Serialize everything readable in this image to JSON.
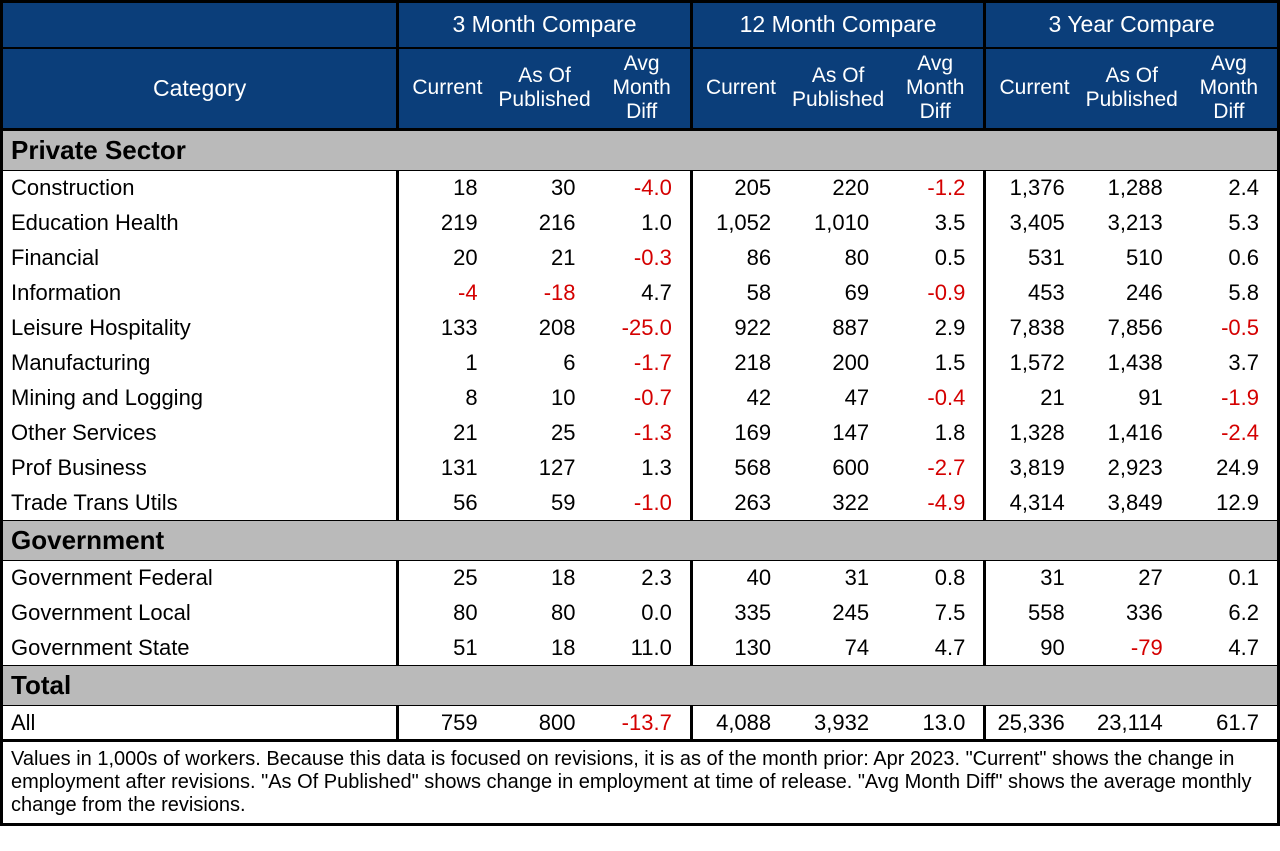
{
  "header": {
    "category": "Category",
    "groups": [
      "3 Month Compare",
      "12 Month Compare",
      "3 Year Compare"
    ],
    "sub": {
      "current": "Current",
      "asof": "As Of\nPublished",
      "avg": "Avg\nMonth\nDiff"
    }
  },
  "colors": {
    "header_bg": "#0b3e7a",
    "header_fg": "#ffffff",
    "section_bg": "#bababa",
    "negative": "#d40000",
    "border": "#000000",
    "bg": "#ffffff"
  },
  "sections": [
    {
      "title": "Private Sector",
      "rows": [
        {
          "label": "Construction",
          "g3": {
            "current": "18",
            "asof": "30",
            "avg": "-4.0"
          },
          "g12": {
            "current": "205",
            "asof": "220",
            "avg": "-1.2"
          },
          "g3y": {
            "current": "1,376",
            "asof": "1,288",
            "avg": "2.4"
          }
        },
        {
          "label": "Education Health",
          "g3": {
            "current": "219",
            "asof": "216",
            "avg": "1.0"
          },
          "g12": {
            "current": "1,052",
            "asof": "1,010",
            "avg": "3.5"
          },
          "g3y": {
            "current": "3,405",
            "asof": "3,213",
            "avg": "5.3"
          }
        },
        {
          "label": "Financial",
          "g3": {
            "current": "20",
            "asof": "21",
            "avg": "-0.3"
          },
          "g12": {
            "current": "86",
            "asof": "80",
            "avg": "0.5"
          },
          "g3y": {
            "current": "531",
            "asof": "510",
            "avg": "0.6"
          }
        },
        {
          "label": "Information",
          "g3": {
            "current": "-4",
            "asof": "-18",
            "avg": "4.7"
          },
          "g12": {
            "current": "58",
            "asof": "69",
            "avg": "-0.9"
          },
          "g3y": {
            "current": "453",
            "asof": "246",
            "avg": "5.8"
          }
        },
        {
          "label": "Leisure Hospitality",
          "g3": {
            "current": "133",
            "asof": "208",
            "avg": "-25.0"
          },
          "g12": {
            "current": "922",
            "asof": "887",
            "avg": "2.9"
          },
          "g3y": {
            "current": "7,838",
            "asof": "7,856",
            "avg": "-0.5"
          }
        },
        {
          "label": "Manufacturing",
          "g3": {
            "current": "1",
            "asof": "6",
            "avg": "-1.7"
          },
          "g12": {
            "current": "218",
            "asof": "200",
            "avg": "1.5"
          },
          "g3y": {
            "current": "1,572",
            "asof": "1,438",
            "avg": "3.7"
          }
        },
        {
          "label": "Mining and Logging",
          "g3": {
            "current": "8",
            "asof": "10",
            "avg": "-0.7"
          },
          "g12": {
            "current": "42",
            "asof": "47",
            "avg": "-0.4"
          },
          "g3y": {
            "current": "21",
            "asof": "91",
            "avg": "-1.9"
          }
        },
        {
          "label": "Other Services",
          "g3": {
            "current": "21",
            "asof": "25",
            "avg": "-1.3"
          },
          "g12": {
            "current": "169",
            "asof": "147",
            "avg": "1.8"
          },
          "g3y": {
            "current": "1,328",
            "asof": "1,416",
            "avg": "-2.4"
          }
        },
        {
          "label": "Prof Business",
          "g3": {
            "current": "131",
            "asof": "127",
            "avg": "1.3"
          },
          "g12": {
            "current": "568",
            "asof": "600",
            "avg": "-2.7"
          },
          "g3y": {
            "current": "3,819",
            "asof": "2,923",
            "avg": "24.9"
          }
        },
        {
          "label": "Trade Trans Utils",
          "g3": {
            "current": "56",
            "asof": "59",
            "avg": "-1.0"
          },
          "g12": {
            "current": "263",
            "asof": "322",
            "avg": "-4.9"
          },
          "g3y": {
            "current": "4,314",
            "asof": "3,849",
            "avg": "12.9"
          }
        }
      ]
    },
    {
      "title": "Government",
      "rows": [
        {
          "label": "Government Federal",
          "g3": {
            "current": "25",
            "asof": "18",
            "avg": "2.3"
          },
          "g12": {
            "current": "40",
            "asof": "31",
            "avg": "0.8"
          },
          "g3y": {
            "current": "31",
            "asof": "27",
            "avg": "0.1"
          }
        },
        {
          "label": "Government Local",
          "g3": {
            "current": "80",
            "asof": "80",
            "avg": "0.0"
          },
          "g12": {
            "current": "335",
            "asof": "245",
            "avg": "7.5"
          },
          "g3y": {
            "current": "558",
            "asof": "336",
            "avg": "6.2"
          }
        },
        {
          "label": "Government State",
          "g3": {
            "current": "51",
            "asof": "18",
            "avg": "11.0"
          },
          "g12": {
            "current": "130",
            "asof": "74",
            "avg": "4.7"
          },
          "g3y": {
            "current": "90",
            "asof": "-79",
            "avg": "4.7"
          }
        }
      ]
    },
    {
      "title": "Total",
      "rows": [
        {
          "label": "All",
          "g3": {
            "current": "759",
            "asof": "800",
            "avg": "-13.7"
          },
          "g12": {
            "current": "4,088",
            "asof": "3,932",
            "avg": "13.0"
          },
          "g3y": {
            "current": "25,336",
            "asof": "23,114",
            "avg": "61.7"
          }
        }
      ]
    }
  ],
  "footnote": "Values in 1,000s of workers. Because this data is focused on revisions, it is as of the month prior: Apr 2023. \"Current\" shows the change in employment after revisions. \"As Of Published\" shows change in employment at time of release. \"Avg Month Diff\" shows the average monthly change from the revisions."
}
